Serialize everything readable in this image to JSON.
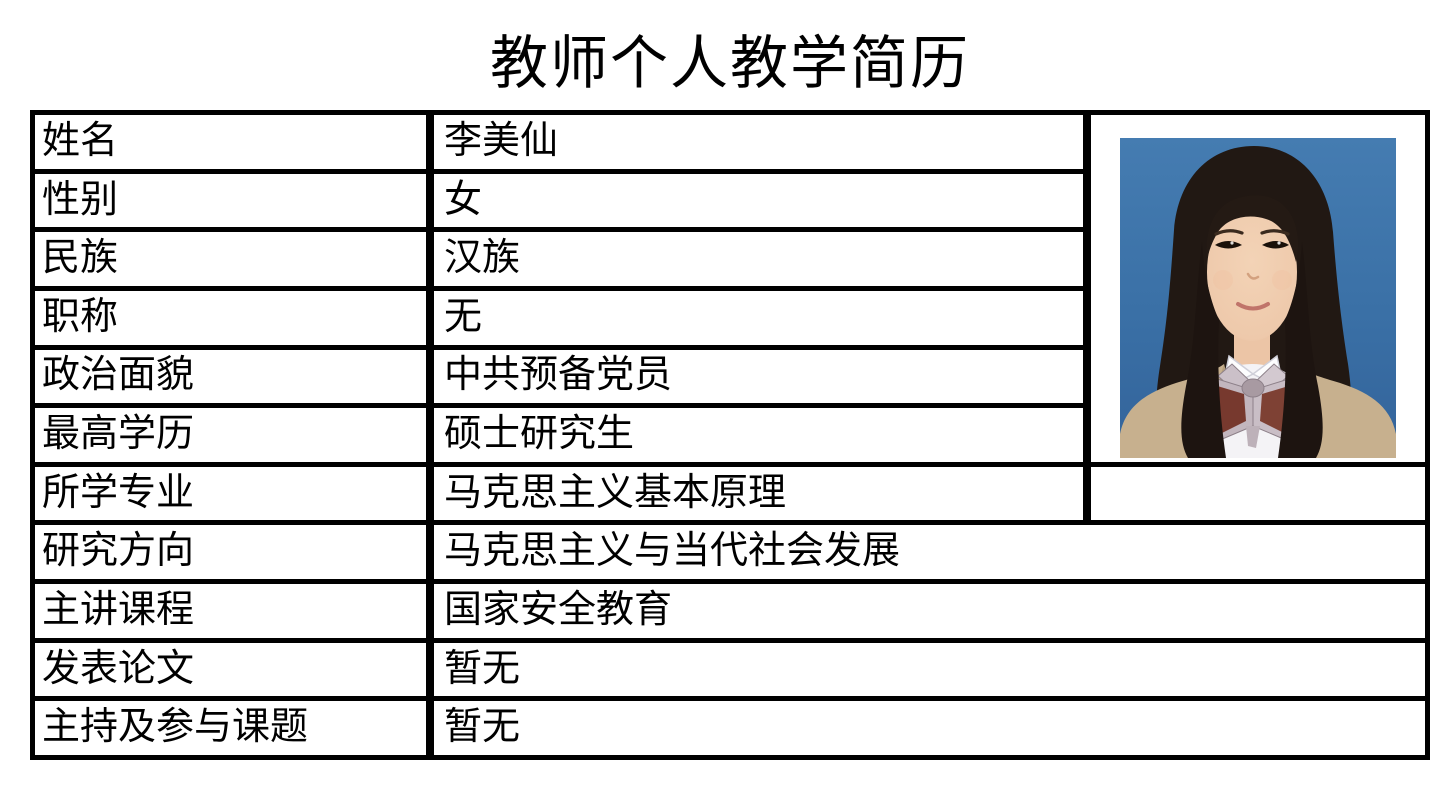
{
  "title": "教师个人教学简历",
  "table": {
    "rows": [
      {
        "label": "姓名",
        "value": "李美仙"
      },
      {
        "label": "性别",
        "value": "女"
      },
      {
        "label": "民族",
        "value": "汉族"
      },
      {
        "label": "职称",
        "value": "无"
      },
      {
        "label": "政治面貌",
        "value": "中共预备党员"
      },
      {
        "label": "最高学历",
        "value": "硕士研究生"
      },
      {
        "label": "所学专业",
        "value": "马克思主义基本原理"
      },
      {
        "label": "研究方向",
        "value": "马克思主义与当代社会发展"
      },
      {
        "label": "主讲课程",
        "value": "国家安全教育"
      },
      {
        "label": "发表论文",
        "value": "暂无"
      },
      {
        "label": "主持及参与课题",
        "value": "暂无"
      }
    ]
  },
  "photo": {
    "alt": "证件照",
    "colors": {
      "background_blue": "#3a71a8",
      "hair": "#1f1712",
      "skin": "#eec9ab",
      "blazer": "#c7b08e",
      "shirt": "#f4f3f6",
      "bow_maroon": "#77392e",
      "bow_silver": "#c9bec6",
      "table_border": "#000000"
    }
  }
}
